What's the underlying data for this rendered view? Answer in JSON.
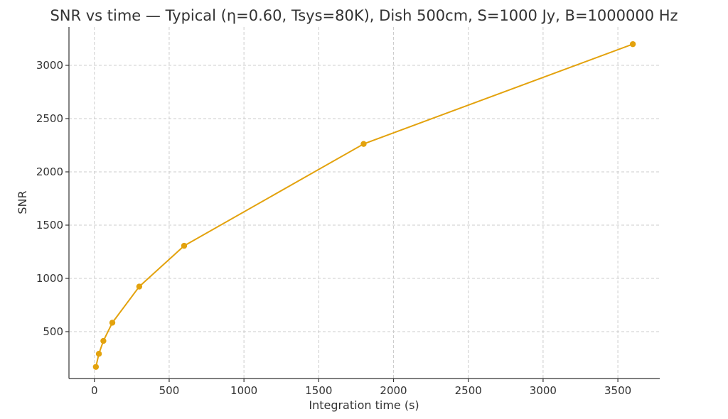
{
  "chart_data": {
    "type": "line",
    "title": "SNR vs time — Typical (η=0.60, Tsys=80K), Dish 500cm, S=1000 Jy, B=1000000 Hz",
    "xlabel": "Integration time (s)",
    "ylabel": "SNR",
    "xlim": [
      -170,
      3780
    ],
    "ylim": [
      60,
      3360
    ],
    "xticks": [
      0,
      500,
      1000,
      1500,
      2000,
      2500,
      3000,
      3500
    ],
    "yticks": [
      500,
      1000,
      1500,
      2000,
      2500,
      3000
    ],
    "grid": true,
    "series": [
      {
        "color": "#E3A20D",
        "x": [
          10,
          30,
          60,
          120,
          300,
          600,
          1800,
          3600
        ],
        "y": [
          169,
          292,
          413,
          584,
          923,
          1306,
          2262,
          3199
        ]
      }
    ]
  }
}
